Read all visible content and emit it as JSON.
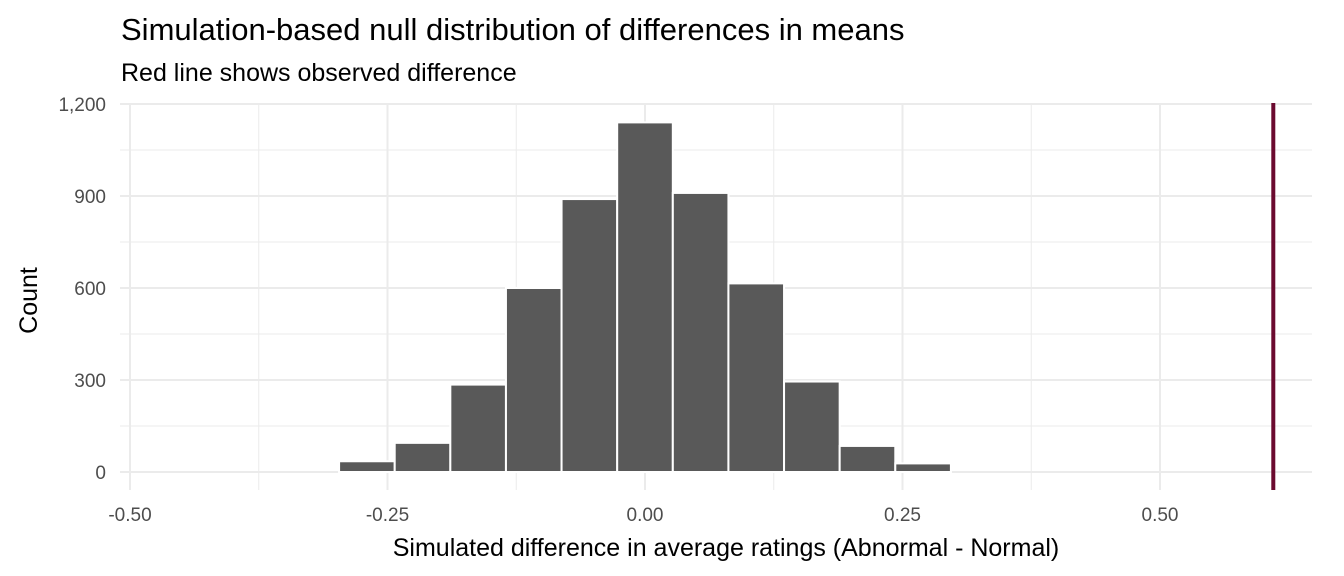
{
  "chart_data": {
    "type": "bar",
    "title": "Simulation-based null distribution of differences in means",
    "subtitle": "Red line shows observed difference",
    "xlabel": "Simulated difference in average ratings (Abnormal - Normal)",
    "ylabel": "Count",
    "xlim": [
      -0.5,
      0.6
    ],
    "ylim": [
      0,
      1200
    ],
    "x_ticks": [
      {
        "value": -0.5,
        "label": "-0.50"
      },
      {
        "value": -0.25,
        "label": "-0.25"
      },
      {
        "value": 0.0,
        "label": "0.00"
      },
      {
        "value": 0.25,
        "label": "0.25"
      },
      {
        "value": 0.5,
        "label": "0.50"
      }
    ],
    "y_ticks": [
      {
        "value": 0,
        "label": "0"
      },
      {
        "value": 300,
        "label": "300"
      },
      {
        "value": 600,
        "label": "600"
      },
      {
        "value": 900,
        "label": "900"
      },
      {
        "value": 1200,
        "label": "1,200"
      }
    ],
    "bin_width": 0.054,
    "bin_centers": [
      -0.27,
      -0.216,
      -0.162,
      -0.108,
      -0.054,
      0.0,
      0.054,
      0.108,
      0.162,
      0.216,
      0.27
    ],
    "values": [
      35,
      95,
      285,
      600,
      890,
      1140,
      910,
      615,
      295,
      85,
      28
    ],
    "observed_difference": 0.61,
    "grid": true,
    "colors": {
      "bars": "#595959",
      "bar_outline": "#ffffff",
      "observed_line": "#6b0a2f",
      "grid": "#ebebeb"
    }
  }
}
